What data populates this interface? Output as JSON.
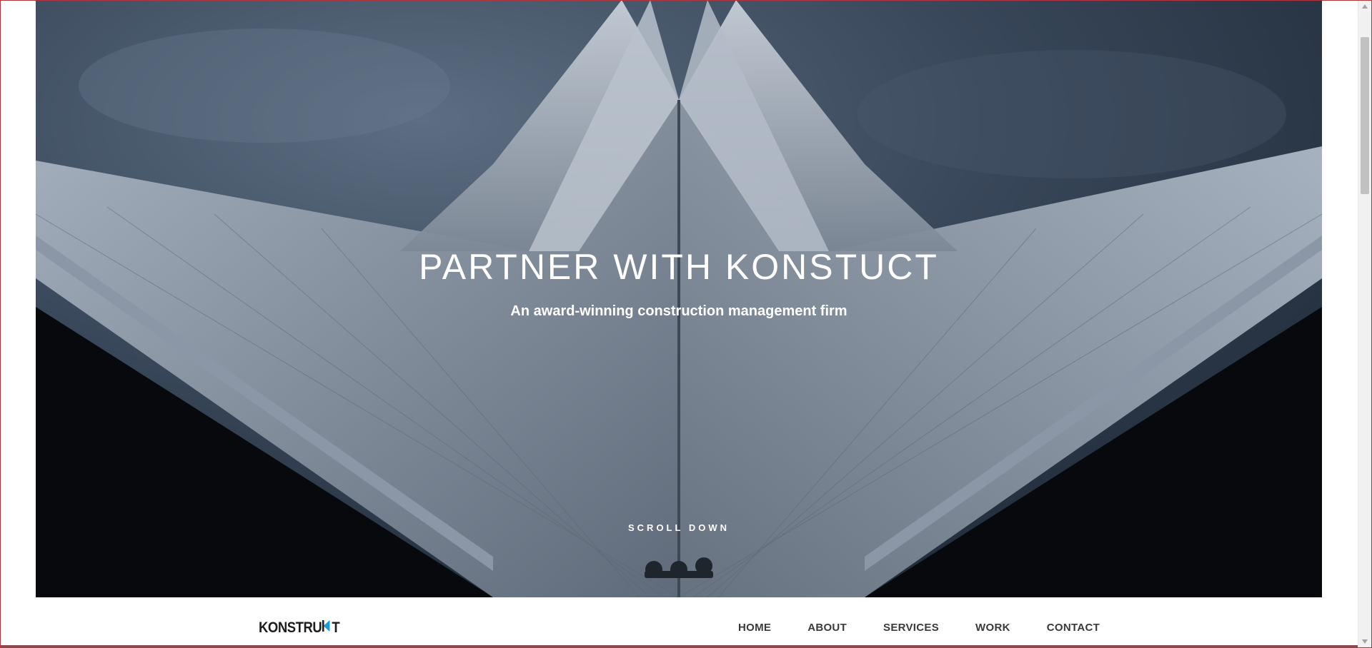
{
  "hero": {
    "title": "PARTNER WITH KONSTUCT",
    "subtitle": "An award-winning construction management firm",
    "scroll_label": "SCROLL DOWN"
  },
  "brand": {
    "logo_text_start": "KONSTRU",
    "logo_text_end": "T",
    "accent_color": "#1a9ad6"
  },
  "nav": {
    "items": [
      {
        "label": "HOME"
      },
      {
        "label": "ABOUT"
      },
      {
        "label": "SERVICES"
      },
      {
        "label": "WORK"
      },
      {
        "label": "CONTACT"
      }
    ]
  },
  "colors": {
    "sky": "#2c3a4b",
    "roof": "#8e9bab",
    "text_on_hero": "#ffffff",
    "nav_text": "#3a3a3a"
  }
}
